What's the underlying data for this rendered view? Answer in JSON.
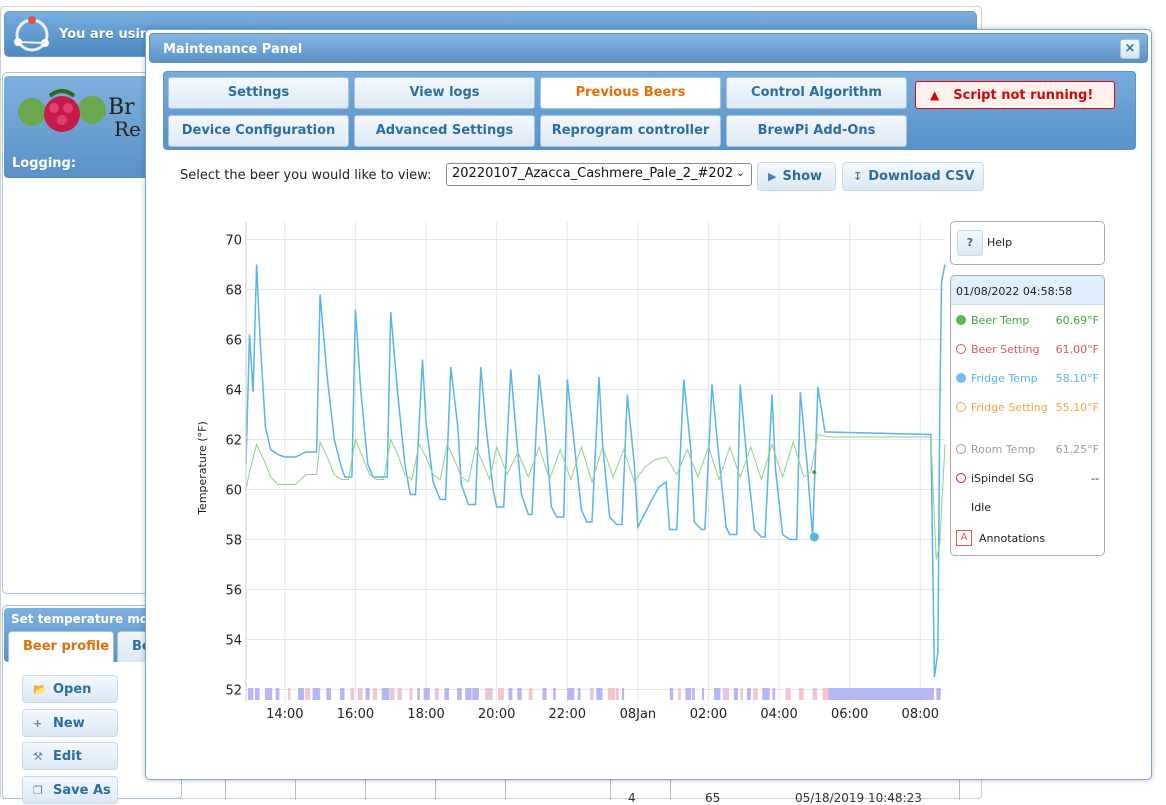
{
  "background": {
    "header_message": "You are usin",
    "logging_label": "Logging:",
    "set_temperature_title": "Set temperature mo",
    "tabs": [
      {
        "label": "Beer profile"
      },
      {
        "label": "Be"
      }
    ],
    "buttons": [
      {
        "label": "Open"
      },
      {
        "label": "New"
      },
      {
        "label": "Edit"
      },
      {
        "label": "Save As"
      }
    ],
    "table_row": {
      "index": "4",
      "value": "65",
      "timestamp": "05/18/2019 10:48:23"
    }
  },
  "dialog": {
    "title": "Maintenance Panel",
    "close_label": "×",
    "tabs": [
      {
        "label": "Settings"
      },
      {
        "label": "View logs"
      },
      {
        "label": "Previous Beers"
      },
      {
        "label": "Control Algorithm"
      },
      {
        "label": "Device Configuration"
      },
      {
        "label": "Advanced Settings"
      },
      {
        "label": "Reprogram controller"
      },
      {
        "label": "BrewPi Add-Ons"
      }
    ],
    "active_tab": "Previous Beers",
    "alert": "Script not running!",
    "select_label": "Select the beer you would like to view:",
    "selected_beer": "20220107_Azacca_Cashmere_Pale_2_#202",
    "show_button": "Show",
    "download_button": "Download CSV"
  },
  "legend": {
    "help_button": "?",
    "help_label": "Help",
    "datetime": "01/08/2022 04:58:58",
    "items": [
      {
        "name": "Beer Temp",
        "value": "60.69°F",
        "color": "#41a83e",
        "filled": true
      },
      {
        "name": "Beer Setting",
        "value": "61.00°F",
        "color": "#e05656",
        "filled": false
      },
      {
        "name": "Fridge Temp",
        "value": "58.10°F",
        "color": "#59b4e8",
        "filled": true
      },
      {
        "name": "Fridge Setting",
        "value": "55.10°F",
        "color": "#f4a64a",
        "filled": false
      },
      {
        "name": "Room Temp",
        "value": "61.25°F",
        "color": "#9e9e9e",
        "filled": false
      },
      {
        "name": "iSpindel SG",
        "value": "--",
        "color": "#cc2222",
        "filled": false
      }
    ],
    "state": "Idle",
    "annotations_icon": "A",
    "annotations_label": "Annotations"
  },
  "chart_data": {
    "type": "line",
    "title": "",
    "xlabel": "",
    "ylabel": "Temperature (°F)",
    "ylim": [
      51.5,
      70.7
    ],
    "yticks": [
      52,
      54,
      56,
      58,
      60,
      62,
      64,
      66,
      68,
      70
    ],
    "xlim": [
      12.9,
      32.7
    ],
    "xticks": [
      {
        "v": 14,
        "label": "14:00"
      },
      {
        "v": 16,
        "label": "16:00"
      },
      {
        "v": 18,
        "label": "18:00"
      },
      {
        "v": 20,
        "label": "20:00"
      },
      {
        "v": 22,
        "label": "22:00"
      },
      {
        "v": 24,
        "label": "08Jan"
      },
      {
        "v": 26,
        "label": "02:00"
      },
      {
        "v": 28,
        "label": "04:00"
      },
      {
        "v": 30,
        "label": "06:00"
      },
      {
        "v": 32,
        "label": "08:00"
      }
    ],
    "grid": true,
    "series": [
      {
        "name": "Fridge Temp",
        "color": "#59b4e8",
        "x": [
          12.9,
          13.0,
          13.1,
          13.2,
          13.3,
          13.45,
          13.6,
          13.8,
          14.0,
          14.3,
          14.6,
          14.9,
          15.0,
          15.2,
          15.4,
          15.6,
          15.7,
          15.9,
          16.0,
          16.15,
          16.35,
          16.5,
          16.7,
          16.9,
          17.0,
          17.2,
          17.4,
          17.55,
          17.7,
          17.9,
          18.0,
          18.2,
          18.4,
          18.55,
          18.7,
          18.9,
          19.0,
          19.2,
          19.4,
          19.55,
          19.7,
          19.9,
          20.0,
          20.2,
          20.4,
          20.55,
          20.7,
          20.9,
          21.0,
          21.2,
          21.4,
          21.55,
          21.7,
          21.9,
          22.0,
          22.2,
          22.4,
          22.55,
          22.7,
          22.9,
          23.0,
          23.2,
          23.4,
          23.55,
          23.7,
          23.9,
          24.0,
          24.4,
          24.6,
          24.8,
          24.9,
          25.1,
          25.3,
          25.5,
          25.6,
          25.8,
          25.9,
          26.1,
          26.3,
          26.5,
          26.6,
          26.8,
          26.9,
          27.1,
          27.3,
          27.5,
          27.6,
          27.8,
          27.9,
          28.1,
          28.3,
          28.5,
          28.6,
          28.8,
          28.95,
          29.1,
          29.3,
          29.4,
          32.3,
          32.4,
          32.5,
          32.55,
          32.6,
          32.7
        ],
        "y": [
          61.0,
          66.2,
          63.9,
          69.0,
          66.0,
          62.5,
          61.6,
          61.4,
          61.3,
          61.3,
          61.5,
          61.5,
          67.8,
          64.5,
          62.0,
          60.9,
          60.5,
          60.5,
          67.2,
          64.0,
          61.0,
          60.5,
          60.5,
          60.5,
          67.1,
          63.8,
          61.0,
          59.8,
          59.8,
          65.2,
          62.7,
          60.3,
          59.6,
          59.6,
          64.9,
          62.5,
          60.2,
          59.4,
          59.4,
          64.9,
          62.5,
          60.0,
          59.3,
          59.3,
          64.8,
          62.3,
          59.8,
          59.0,
          59.0,
          64.6,
          62.0,
          59.3,
          58.9,
          58.9,
          64.4,
          61.8,
          59.2,
          58.7,
          58.7,
          64.5,
          61.8,
          58.9,
          58.6,
          58.6,
          63.8,
          61.0,
          58.5,
          59.6,
          60.1,
          60.3,
          58.4,
          58.4,
          64.4,
          61.6,
          58.7,
          58.4,
          58.4,
          64.2,
          61.2,
          58.5,
          58.2,
          58.2,
          64.2,
          61.0,
          58.4,
          58.1,
          58.1,
          63.8,
          60.8,
          58.2,
          58.0,
          58.0,
          63.9,
          60.9,
          58.1,
          64.1,
          62.3,
          62.3,
          62.2,
          52.5,
          53.5,
          62.8,
          68.3,
          69.0
        ]
      },
      {
        "name": "Beer Temp",
        "color": "#8fd18a",
        "x": [
          12.9,
          13.0,
          13.2,
          13.4,
          13.6,
          13.8,
          14.0,
          14.3,
          14.6,
          14.9,
          15.0,
          15.2,
          15.4,
          15.6,
          15.8,
          16.0,
          16.2,
          16.4,
          16.6,
          16.8,
          17.0,
          17.2,
          17.4,
          17.6,
          17.8,
          18.0,
          18.2,
          18.4,
          18.6,
          18.8,
          19.0,
          19.2,
          19.4,
          19.6,
          19.8,
          20.0,
          20.3,
          20.6,
          20.9,
          21.2,
          21.5,
          21.8,
          22.1,
          22.4,
          22.7,
          23.0,
          23.3,
          23.6,
          23.9,
          24.2,
          24.5,
          24.8,
          25.1,
          25.4,
          25.7,
          26.0,
          26.3,
          26.6,
          26.9,
          27.2,
          27.5,
          27.8,
          28.1,
          28.4,
          28.7,
          28.9,
          29.1,
          29.4,
          32.3,
          32.45,
          32.55,
          32.7
        ],
        "y": [
          60.0,
          60.7,
          61.8,
          61.2,
          60.5,
          60.2,
          60.2,
          60.2,
          60.6,
          60.6,
          61.9,
          61.3,
          60.6,
          60.4,
          60.4,
          62.0,
          61.3,
          60.6,
          60.4,
          60.4,
          62.0,
          61.4,
          60.6,
          60.4,
          61.8,
          61.3,
          60.6,
          60.4,
          61.8,
          61.2,
          60.5,
          60.3,
          61.7,
          61.1,
          60.4,
          61.7,
          60.6,
          61.5,
          60.5,
          61.7,
          60.4,
          61.6,
          60.4,
          61.7,
          60.3,
          61.7,
          60.5,
          61.6,
          60.3,
          60.9,
          61.2,
          61.3,
          60.6,
          61.6,
          60.5,
          61.7,
          60.4,
          61.7,
          60.5,
          61.7,
          60.4,
          61.8,
          60.5,
          61.9,
          60.5,
          60.7,
          62.2,
          62.1,
          62.1,
          57.2,
          57.8,
          61.8
        ]
      }
    ],
    "current_point": {
      "x": 29.0,
      "y": 58.1
    }
  }
}
